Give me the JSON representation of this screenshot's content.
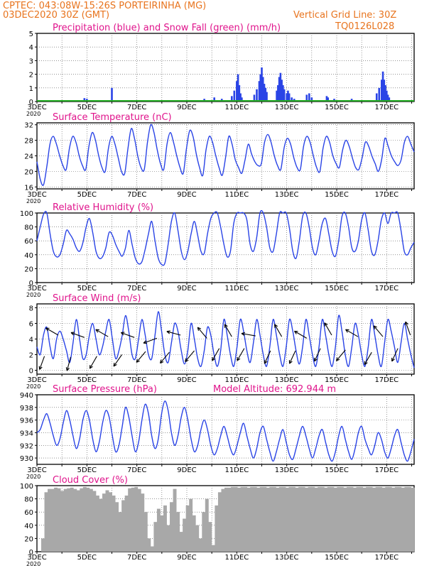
{
  "header": {
    "line1": "CPTEC:  043:08W-15:26S  PORTEIRINHA (MG)",
    "line2": "03DEC2020 30Z (GMT)",
    "right1": "Vertical Grid Line: 30Z",
    "right2": "TQ0126L028"
  },
  "colors": {
    "header": "#e8741e",
    "title": "#e0148c",
    "line": "#2a44e6",
    "snow": "#22aa22",
    "cloud": "#a8a8a8",
    "wind": "#000000"
  },
  "x_labels": [
    "3DEC",
    "5DEC",
    "7DEC",
    "9DEC",
    "11DEC",
    "13DEC",
    "15DEC",
    "17DEC"
  ],
  "year_label": "2020",
  "chart_data": [
    {
      "id": "precip",
      "type": "bar",
      "title": "Precipitation (blue) and Snow Fall (green) (mm/h)",
      "ylim": [
        0,
        5
      ],
      "yticks": [
        0,
        1,
        2,
        3,
        4,
        5
      ],
      "x_range_days": [
        3,
        18.1
      ],
      "series": [
        {
          "name": "Precipitation",
          "color": "#2a44e6",
          "points": [
            [
              4.9,
              0.25
            ],
            [
              5.0,
              0.2
            ],
            [
              6.0,
              1.0
            ],
            [
              6.6,
              0.05
            ],
            [
              8.4,
              0.1
            ],
            [
              8.8,
              0.05
            ],
            [
              9.7,
              0.2
            ],
            [
              10.1,
              0.3
            ],
            [
              10.4,
              0.2
            ],
            [
              10.8,
              0.4
            ],
            [
              10.9,
              0.8
            ],
            [
              11.0,
              1.5
            ],
            [
              11.05,
              2.0
            ],
            [
              11.1,
              1.2
            ],
            [
              11.15,
              0.6
            ],
            [
              11.2,
              0.3
            ],
            [
              11.7,
              0.5
            ],
            [
              11.8,
              0.9
            ],
            [
              11.9,
              1.5
            ],
            [
              11.95,
              2.0
            ],
            [
              12.0,
              2.5
            ],
            [
              12.05,
              1.8
            ],
            [
              12.1,
              1.3
            ],
            [
              12.15,
              1.0
            ],
            [
              12.2,
              0.7
            ],
            [
              12.6,
              0.8
            ],
            [
              12.65,
              1.2
            ],
            [
              12.7,
              1.8
            ],
            [
              12.75,
              2.1
            ],
            [
              12.8,
              1.6
            ],
            [
              12.85,
              1.2
            ],
            [
              12.9,
              0.9
            ],
            [
              13.0,
              0.6
            ],
            [
              13.05,
              0.8
            ],
            [
              13.1,
              0.6
            ],
            [
              13.2,
              0.3
            ],
            [
              13.3,
              0.2
            ],
            [
              13.8,
              0.5
            ],
            [
              13.9,
              0.6
            ],
            [
              14.0,
              0.3
            ],
            [
              14.6,
              0.4
            ],
            [
              14.65,
              0.3
            ],
            [
              14.9,
              0.2
            ],
            [
              15.6,
              0.2
            ],
            [
              16.6,
              0.6
            ],
            [
              16.7,
              1.0
            ],
            [
              16.8,
              1.6
            ],
            [
              16.85,
              2.2
            ],
            [
              16.9,
              1.6
            ],
            [
              16.95,
              1.2
            ],
            [
              17.0,
              0.8
            ],
            [
              17.05,
              0.5
            ],
            [
              17.1,
              0.3
            ]
          ]
        },
        {
          "name": "Snow Fall",
          "color": "#22aa22",
          "constant": 0
        }
      ]
    },
    {
      "id": "temp",
      "type": "line",
      "title": "Surface Temperature (nC)",
      "ylim": [
        15.5,
        32.5
      ],
      "yticks": [
        16,
        20,
        24,
        28,
        32
      ],
      "series": [
        {
          "name": "Temperature",
          "color": "#2a44e6",
          "y": [
            22.5,
            18,
            16.5,
            21,
            27,
            29,
            27,
            24,
            21.5,
            20.5,
            26,
            29,
            27.5,
            24,
            21.5,
            20.5,
            26.5,
            30,
            28,
            24,
            21,
            20,
            26,
            29,
            27,
            23.5,
            20,
            19.5,
            26,
            31,
            28.5,
            24,
            21,
            20.5,
            27.5,
            32,
            30,
            25.5,
            22,
            20.5,
            27,
            30,
            27.5,
            24,
            21,
            19.5,
            26,
            30.5,
            29,
            24.5,
            21,
            19,
            25.5,
            29,
            27.5,
            24,
            21,
            19,
            23.5,
            29,
            27,
            23,
            21,
            19.5,
            23,
            27,
            24.5,
            22.5,
            21.5,
            22,
            27.5,
            29.5,
            27.5,
            24,
            21.5,
            20.5,
            26,
            28.5,
            27,
            23.5,
            21,
            20.5,
            26.5,
            29,
            27.5,
            24,
            21,
            20,
            26,
            29,
            27.5,
            24,
            22,
            21,
            25.5,
            28,
            26.5,
            23.5,
            21,
            20.5,
            23.5,
            27.5,
            26.5,
            24,
            22,
            20,
            23,
            28.5,
            26.5,
            24,
            22.5,
            21.5,
            23,
            27.5,
            29,
            27,
            25
          ]
        }
      ]
    },
    {
      "id": "rh",
      "type": "line",
      "title": "Relative Humidity (%)",
      "ylim": [
        0,
        100
      ],
      "yticks": [
        0,
        20,
        40,
        60,
        80,
        100
      ],
      "series": [
        {
          "name": "Relative Humidity",
          "color": "#2a44e6",
          "y": [
            60,
            80,
            98,
            100,
            70,
            45,
            37,
            40,
            55,
            75,
            70,
            62,
            50,
            45,
            57,
            80,
            92,
            72,
            45,
            35,
            37,
            50,
            72,
            68,
            55,
            45,
            38,
            50,
            75,
            55,
            35,
            27,
            30,
            48,
            70,
            88,
            60,
            35,
            26,
            28,
            55,
            88,
            100,
            75,
            45,
            33,
            45,
            70,
            88,
            68,
            45,
            42,
            70,
            92,
            100,
            100,
            80,
            55,
            37,
            45,
            85,
            100,
            100,
            100,
            90,
            55,
            45,
            65,
            100,
            100,
            80,
            50,
            45,
            70,
            100,
            100,
            100,
            78,
            45,
            35,
            60,
            95,
            100,
            80,
            50,
            40,
            60,
            85,
            92,
            70,
            45,
            38,
            60,
            95,
            100,
            80,
            50,
            45,
            60,
            90,
            100,
            75,
            45,
            40,
            60,
            90,
            100,
            85,
            100,
            100,
            100,
            75,
            45,
            40,
            50,
            58
          ]
        }
      ]
    },
    {
      "id": "wind",
      "type": "line",
      "title": "Surface Wind (m/s)",
      "ylim": [
        -0.5,
        8.5
      ],
      "yticks": [
        0,
        2,
        4,
        6,
        8
      ],
      "series": [
        {
          "name": "Wind speed",
          "color": "#2a44e6",
          "y": [
            3,
            2,
            4.5,
            5.5,
            3,
            1.5,
            4,
            5,
            4,
            2.5,
            1,
            3.5,
            6.5,
            4,
            1.5,
            2,
            4.5,
            6,
            4,
            2,
            3,
            5,
            6.5,
            4,
            1.5,
            2.5,
            4.5,
            7,
            5,
            2,
            1.5,
            4,
            6.5,
            4.5,
            2,
            1.5,
            4.5,
            7.5,
            5,
            2,
            1,
            3.5,
            6,
            5,
            2.5,
            0.8,
            2.5,
            6,
            4,
            1.5,
            0.5,
            2.5,
            5.5,
            4.5,
            2,
            0.5,
            2.5,
            6.5,
            4.5,
            2,
            0.5,
            3,
            6.5,
            5,
            2.5,
            1,
            3.5,
            6.5,
            4.5,
            2,
            0.5,
            3,
            6.5,
            4.5,
            2,
            0.5,
            3,
            6.5,
            5,
            2.5,
            0.8,
            3,
            6.5,
            4.5,
            2,
            0.5,
            3,
            6.5,
            4.5,
            2,
            0.5,
            3,
            7,
            5,
            2,
            0.5,
            3,
            6,
            4.5,
            2,
            0.5,
            3,
            6.5,
            4.5,
            2,
            0.5,
            3.5,
            6.5,
            5,
            3,
            1,
            3.5,
            6,
            4,
            2,
            0.3
          ]
        }
      ],
      "arrows": [
        [
          3.3,
          1.8,
          200
        ],
        [
          3.85,
          4.5,
          300
        ],
        [
          4.35,
          1.7,
          195
        ],
        [
          4.9,
          4.2,
          290
        ],
        [
          5.4,
          1.8,
          210
        ],
        [
          5.85,
          4.3,
          300
        ],
        [
          6.4,
          2.0,
          215
        ],
        [
          6.9,
          4.2,
          290
        ],
        [
          7.35,
          2.4,
          220
        ],
        [
          7.8,
          4.1,
          250
        ],
        [
          8.3,
          2.3,
          220
        ],
        [
          8.75,
          4.5,
          285
        ],
        [
          9.3,
          2.5,
          220
        ],
        [
          9.8,
          4.1,
          320
        ],
        [
          10.3,
          2.8,
          210
        ],
        [
          10.8,
          4.3,
          330
        ],
        [
          11.3,
          2.8,
          210
        ],
        [
          11.75,
          4.4,
          280
        ],
        [
          12.35,
          2.5,
          205
        ],
        [
          12.8,
          4.3,
          330
        ],
        [
          13.35,
          2.5,
          205
        ],
        [
          13.8,
          4.1,
          300
        ],
        [
          14.35,
          2.8,
          205
        ],
        [
          14.8,
          4.5,
          330
        ],
        [
          15.35,
          2.6,
          220
        ],
        [
          15.85,
          4.3,
          300
        ],
        [
          16.4,
          2.3,
          210
        ],
        [
          16.85,
          4.3,
          320
        ],
        [
          17.45,
          2.8,
          205
        ],
        [
          17.95,
          4.5,
          340
        ]
      ]
    },
    {
      "id": "pres",
      "type": "line",
      "title": "Surface Pressure (hPa)",
      "annotation": "Model Altitude: 692.944 m",
      "ylim": [
        929,
        940
      ],
      "yticks": [
        930,
        932,
        934,
        936,
        938,
        940
      ],
      "series": [
        {
          "name": "Surface Pressure",
          "color": "#2a44e6",
          "y": [
            934,
            934.5,
            936,
            937,
            935.5,
            933.5,
            932,
            933,
            935.5,
            937.5,
            936,
            933.5,
            931.5,
            933,
            936,
            937.5,
            936,
            933,
            931,
            932.5,
            935.5,
            937.5,
            936.5,
            933.5,
            931,
            932,
            935,
            938,
            936.5,
            933.5,
            931,
            932.5,
            936,
            938.5,
            937,
            933.5,
            931.5,
            933,
            937,
            939,
            937.5,
            934,
            932,
            933.5,
            936.5,
            938,
            936,
            933,
            931,
            932,
            934.5,
            936,
            934.5,
            932,
            930.5,
            931.5,
            933.5,
            935,
            933.5,
            931.5,
            930.5,
            932,
            934,
            935.5,
            933.5,
            931.5,
            930,
            931.5,
            934,
            935,
            933,
            931,
            929.5,
            931,
            933,
            934.5,
            932.5,
            930.5,
            929.8,
            931.5,
            933.5,
            935,
            933.5,
            931.5,
            930,
            931.5,
            933.5,
            934.5,
            932.5,
            930.5,
            929.5,
            931,
            933.5,
            935,
            933,
            931,
            929.8,
            931.5,
            934,
            935,
            933,
            931.5,
            930.5,
            932,
            934,
            933,
            931,
            930,
            931.5,
            933.5,
            934.5,
            932.5,
            930.5,
            929.5,
            931,
            933
          ]
        }
      ]
    },
    {
      "id": "cloud",
      "type": "bar",
      "title": "Cloud Cover (%)",
      "ylim": [
        0,
        100
      ],
      "yticks": [
        0,
        20,
        40,
        60,
        80,
        100
      ],
      "series": [
        {
          "name": "Cloud Cover",
          "color": "#a8a8a8",
          "y": [
            20,
            90,
            95,
            95,
            97,
            96,
            92,
            95,
            96,
            97,
            95,
            93,
            96,
            98,
            97,
            95,
            92,
            85,
            80,
            88,
            93,
            90,
            85,
            75,
            60,
            78,
            85,
            96,
            97,
            98,
            95,
            88,
            60,
            20,
            8,
            45,
            65,
            55,
            70,
            40,
            75,
            95,
            60,
            30,
            50,
            70,
            80,
            55,
            40,
            20,
            60,
            80,
            45,
            10,
            70,
            90,
            95,
            97,
            97,
            98,
            98,
            97,
            98,
            98,
            97,
            98,
            98,
            97,
            98,
            98,
            97,
            98,
            98,
            97,
            98,
            98,
            97,
            98,
            98,
            97,
            98,
            98,
            97,
            98,
            98,
            97,
            98,
            98,
            97,
            98,
            98,
            97,
            98,
            98,
            97,
            98,
            98,
            97,
            98,
            98,
            97,
            98,
            98,
            97,
            98,
            98,
            97,
            98,
            98,
            97,
            98,
            98,
            97,
            98,
            98,
            97
          ]
        }
      ]
    }
  ]
}
